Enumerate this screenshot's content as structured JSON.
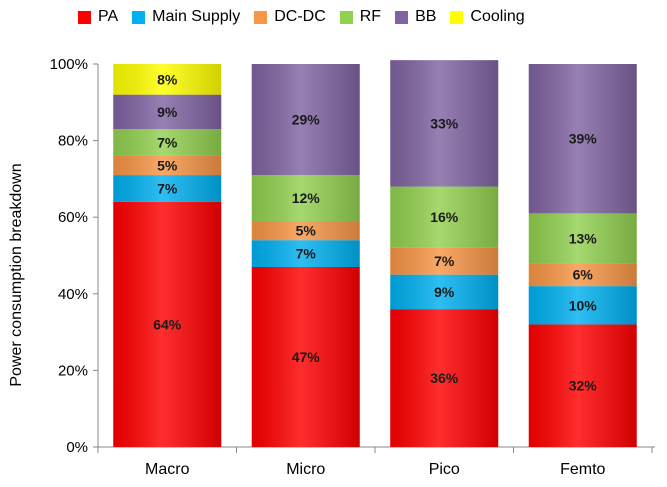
{
  "chart_data": {
    "type": "bar",
    "stacked": true,
    "title": "",
    "xlabel": "",
    "ylabel": "Power consumption breakdown",
    "ylim": [
      0,
      100
    ],
    "yticks": [
      "0%",
      "20%",
      "40%",
      "60%",
      "80%",
      "100%"
    ],
    "categories": [
      "Macro",
      "Micro",
      "Pico",
      "Femto"
    ],
    "legend_position": "top",
    "series": [
      {
        "name": "PA",
        "color": "#ff0000",
        "values": [
          64,
          47,
          36,
          32
        ],
        "labels": [
          "64%",
          "47%",
          "36%",
          "32%"
        ]
      },
      {
        "name": "Main Supply",
        "color": "#00b0f0",
        "values": [
          7,
          7,
          9,
          10
        ],
        "labels": [
          "7%",
          "7%",
          "9%",
          "10%"
        ]
      },
      {
        "name": "DC-DC",
        "color": "#f79646",
        "values": [
          5,
          5,
          7,
          6
        ],
        "labels": [
          "5%",
          "5%",
          "7%",
          "6%"
        ]
      },
      {
        "name": "RF",
        "color": "#92d050",
        "values": [
          7,
          12,
          16,
          13
        ],
        "labels": [
          "7%",
          "12%",
          "16%",
          "13%"
        ]
      },
      {
        "name": "BB",
        "color": "#8064a2",
        "values": [
          9,
          29,
          33,
          39
        ],
        "labels": [
          "9%",
          "29%",
          "33%",
          "39%"
        ]
      },
      {
        "name": "Cooling",
        "color": "#ffff00",
        "values": [
          8,
          0,
          0,
          0
        ],
        "labels": [
          "8%",
          "",
          "",
          ""
        ]
      }
    ]
  }
}
